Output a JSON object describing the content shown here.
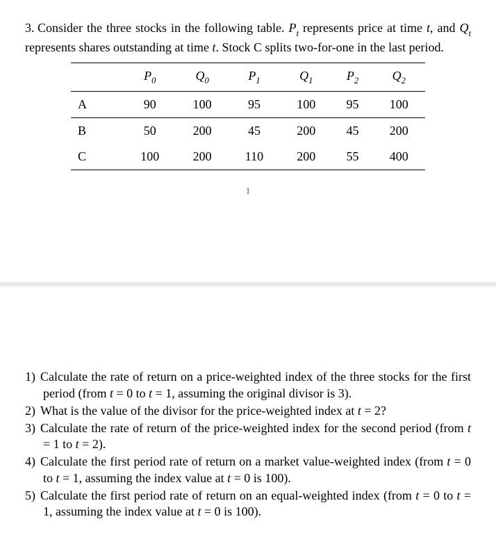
{
  "problem": {
    "number": "3.",
    "intro_parts": [
      "Consider the three stocks in the following table. ",
      " represents price at time ",
      ", and ",
      " represents shares outstanding at time ",
      ". Stock C splits two-for-one in the last period."
    ],
    "symbols": {
      "P": "P",
      "Q": "Q",
      "t": "t",
      "sub_t": "t"
    }
  },
  "table": {
    "headers": {
      "stock": "",
      "P0_sym": "P",
      "P0_sub": "0",
      "Q0_sym": "Q",
      "Q0_sub": "0",
      "P1_sym": "P",
      "P1_sub": "1",
      "Q1_sym": "Q",
      "Q1_sub": "1",
      "P2_sym": "P",
      "P2_sub": "2",
      "Q2_sym": "Q",
      "Q2_sub": "2"
    },
    "rows": [
      {
        "label": "A",
        "P0": "90",
        "Q0": "100",
        "P1": "95",
        "Q1": "100",
        "P2": "95",
        "Q2": "100"
      },
      {
        "label": "B",
        "P0": "50",
        "Q0": "200",
        "P1": "45",
        "Q1": "200",
        "P2": "45",
        "Q2": "200"
      },
      {
        "label": "C",
        "P0": "100",
        "Q0": "200",
        "P1": "110",
        "Q1": "200",
        "P2": "55",
        "Q2": "400"
      }
    ]
  },
  "page_number": "1",
  "questions": [
    {
      "num": "1)",
      "parts": [
        "Calculate the rate of return on a price-weighted index of the three stocks for the first period (from ",
        " = 0 to ",
        " = 1, assuming the original divisor is 3)."
      ]
    },
    {
      "num": "2)",
      "parts": [
        "What is the value of the divisor for the price-weighted index at ",
        " = 2?"
      ]
    },
    {
      "num": "3)",
      "parts": [
        "Calculate the rate of return of the price-weighted index for the second period (from ",
        " = 1 to ",
        " = 2)."
      ]
    },
    {
      "num": "4)",
      "parts": [
        "Calculate the first period rate of return on a market value-weighted index (from ",
        " = 0 to ",
        " = 1, assuming the index value at ",
        " = 0 is 100)."
      ]
    },
    {
      "num": "5)",
      "parts": [
        "Calculate the first period rate of return on an equal-weighted index (from ",
        " = 0 to ",
        " = 1, assuming the index value at ",
        " = 0 is 100)."
      ]
    }
  ]
}
